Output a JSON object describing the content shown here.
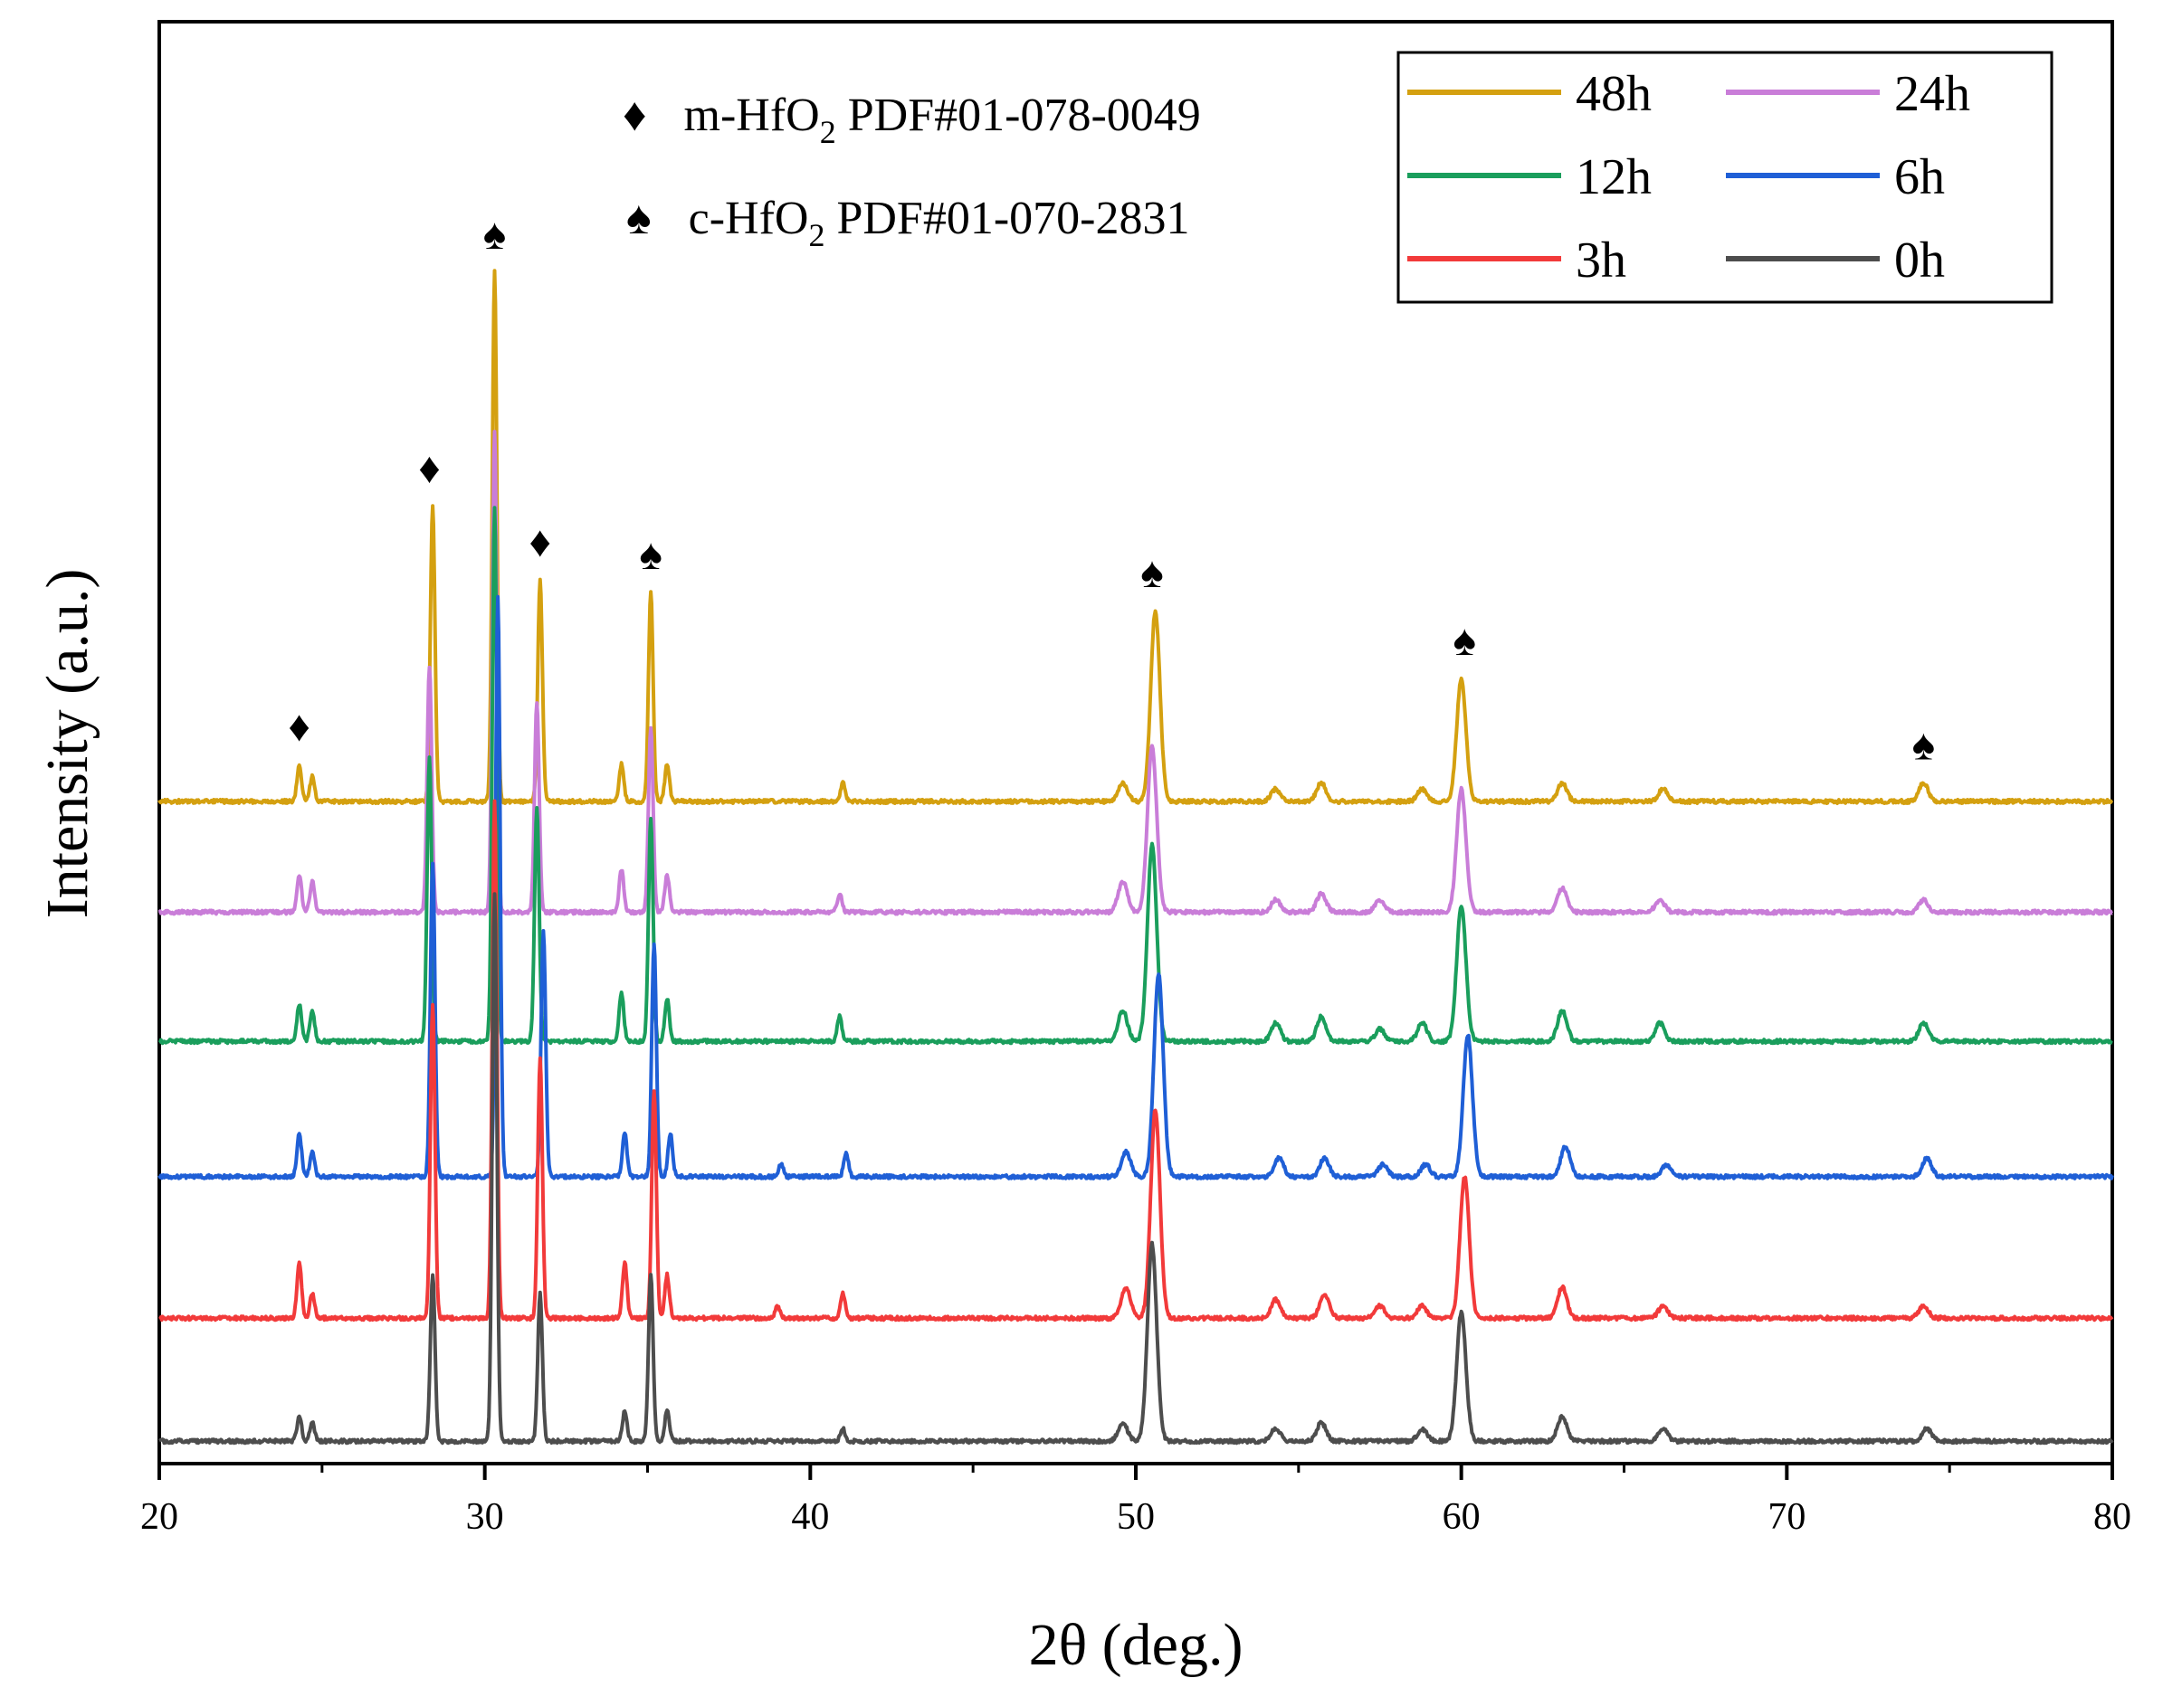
{
  "chart_data": {
    "type": "line",
    "title": "",
    "xlabel": "2θ (deg.)",
    "ylabel": "Intensity (a.u.)",
    "xlim": [
      20,
      80
    ],
    "xticks": [
      20,
      30,
      40,
      50,
      60,
      70,
      80
    ],
    "xtick_labels": [
      "20",
      "30",
      "40",
      "50",
      "60",
      "70",
      "80"
    ],
    "legend_position": "top-right",
    "annotations": [
      {
        "symbol": "♦",
        "prefix": "m-HfO",
        "sub": "2",
        "suffix": " PDF#01-078-0049"
      },
      {
        "symbol": "♠",
        "prefix": "c-HfO",
        "sub": "2",
        "suffix": " PDF#01-070-2831"
      }
    ],
    "peak_markers": [
      {
        "symbol": "♦",
        "x": 24.3
      },
      {
        "symbol": "♦",
        "x": 28.3
      },
      {
        "symbol": "♠",
        "x": 30.3
      },
      {
        "symbol": "♦",
        "x": 31.7
      },
      {
        "symbol": "♠",
        "x": 35.1
      },
      {
        "symbol": "♠",
        "x": 50.5
      },
      {
        "symbol": "♠",
        "x": 60.1
      },
      {
        "symbol": "♠",
        "x": 74.2
      }
    ],
    "series": [
      {
        "name": "48h",
        "color": "#D4A010",
        "baseline": 1.0,
        "peaks": [
          [
            24.3,
            0.06
          ],
          [
            24.7,
            0.04
          ],
          [
            28.4,
            0.48
          ],
          [
            30.3,
            0.86
          ],
          [
            31.7,
            0.36
          ],
          [
            34.2,
            0.06
          ],
          [
            35.1,
            0.34
          ],
          [
            35.6,
            0.06
          ],
          [
            41.0,
            0.03
          ],
          [
            49.6,
            0.03
          ],
          [
            50.6,
            0.31
          ],
          [
            54.3,
            0.02
          ],
          [
            55.7,
            0.03
          ],
          [
            58.8,
            0.02
          ],
          [
            60.0,
            0.2
          ],
          [
            63.1,
            0.03
          ],
          [
            66.2,
            0.02
          ],
          [
            74.2,
            0.03
          ]
        ]
      },
      {
        "name": "24h",
        "color": "#C97DD8",
        "baseline": 0.82,
        "peaks": [
          [
            24.3,
            0.06
          ],
          [
            24.7,
            0.05
          ],
          [
            28.3,
            0.4
          ],
          [
            30.3,
            0.78
          ],
          [
            31.6,
            0.34
          ],
          [
            34.2,
            0.07
          ],
          [
            35.1,
            0.3
          ],
          [
            35.6,
            0.06
          ],
          [
            40.9,
            0.03
          ],
          [
            49.6,
            0.05
          ],
          [
            50.5,
            0.27
          ],
          [
            54.3,
            0.02
          ],
          [
            55.7,
            0.03
          ],
          [
            57.5,
            0.02
          ],
          [
            60.0,
            0.2
          ],
          [
            63.1,
            0.04
          ],
          [
            66.1,
            0.02
          ],
          [
            74.2,
            0.02
          ]
        ]
      },
      {
        "name": "12h",
        "color": "#1A9E5C",
        "baseline": 0.61,
        "peaks": [
          [
            24.3,
            0.06
          ],
          [
            24.7,
            0.05
          ],
          [
            28.3,
            0.46
          ],
          [
            30.3,
            0.87
          ],
          [
            31.6,
            0.38
          ],
          [
            34.2,
            0.08
          ],
          [
            35.1,
            0.36
          ],
          [
            35.6,
            0.07
          ],
          [
            40.9,
            0.04
          ],
          [
            49.6,
            0.05
          ],
          [
            50.5,
            0.32
          ],
          [
            54.3,
            0.03
          ],
          [
            55.7,
            0.04
          ],
          [
            57.5,
            0.02
          ],
          [
            58.8,
            0.03
          ],
          [
            60.0,
            0.22
          ],
          [
            63.1,
            0.05
          ],
          [
            66.1,
            0.03
          ],
          [
            74.2,
            0.03
          ]
        ]
      },
      {
        "name": "6h",
        "color": "#1F5FD6",
        "baseline": 0.39,
        "peaks": [
          [
            24.3,
            0.07
          ],
          [
            24.7,
            0.04
          ],
          [
            28.4,
            0.51
          ],
          [
            30.4,
            0.94
          ],
          [
            31.8,
            0.4
          ],
          [
            34.3,
            0.07
          ],
          [
            35.2,
            0.38
          ],
          [
            35.7,
            0.07
          ],
          [
            39.1,
            0.02
          ],
          [
            41.1,
            0.04
          ],
          [
            49.7,
            0.04
          ],
          [
            50.7,
            0.33
          ],
          [
            54.4,
            0.03
          ],
          [
            55.8,
            0.03
          ],
          [
            57.6,
            0.02
          ],
          [
            58.9,
            0.02
          ],
          [
            60.2,
            0.23
          ],
          [
            63.2,
            0.05
          ],
          [
            66.3,
            0.02
          ],
          [
            74.3,
            0.03
          ]
        ]
      },
      {
        "name": "3h",
        "color": "#F23A3A",
        "baseline": 0.16,
        "peaks": [
          [
            24.3,
            0.09
          ],
          [
            24.7,
            0.04
          ],
          [
            28.4,
            0.51
          ],
          [
            30.3,
            0.84
          ],
          [
            31.7,
            0.42
          ],
          [
            34.3,
            0.09
          ],
          [
            35.2,
            0.37
          ],
          [
            35.6,
            0.07
          ],
          [
            39.0,
            0.02
          ],
          [
            41.0,
            0.04
          ],
          [
            49.7,
            0.05
          ],
          [
            50.6,
            0.34
          ],
          [
            54.3,
            0.03
          ],
          [
            55.8,
            0.04
          ],
          [
            57.5,
            0.02
          ],
          [
            58.8,
            0.02
          ],
          [
            60.1,
            0.23
          ],
          [
            63.1,
            0.05
          ],
          [
            66.2,
            0.02
          ],
          [
            74.2,
            0.02
          ]
        ]
      },
      {
        "name": "0h",
        "color": "#4D4D4D",
        "baseline": -0.04,
        "peaks": [
          [
            24.3,
            0.04
          ],
          [
            24.7,
            0.03
          ],
          [
            28.4,
            0.27
          ],
          [
            30.3,
            0.89
          ],
          [
            31.7,
            0.24
          ],
          [
            34.3,
            0.05
          ],
          [
            35.1,
            0.27
          ],
          [
            35.6,
            0.05
          ],
          [
            41.0,
            0.02
          ],
          [
            49.6,
            0.03
          ],
          [
            50.5,
            0.32
          ],
          [
            54.3,
            0.02
          ],
          [
            55.7,
            0.03
          ],
          [
            58.8,
            0.02
          ],
          [
            60.0,
            0.21
          ],
          [
            63.1,
            0.04
          ],
          [
            66.2,
            0.02
          ],
          [
            74.3,
            0.02
          ]
        ]
      }
    ],
    "legend_order": [
      "48h",
      "24h",
      "12h",
      "6h",
      "3h",
      "0h"
    ]
  }
}
